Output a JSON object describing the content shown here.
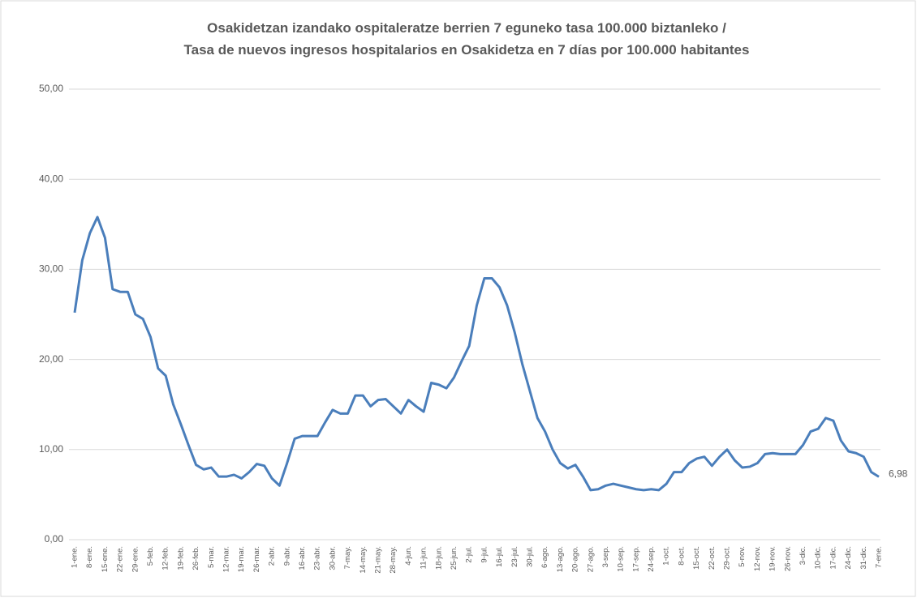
{
  "chart_data": {
    "type": "line",
    "title": "Osakidetzan izandako ospitaleratze berrien 7 eguneko tasa 100.000 biztanleko /",
    "subtitle": "Tasa de nuevos ingresos hospitalarios en Osakidetza en 7 días por 100.000 habitantes",
    "categories": [
      "1-ene.",
      null,
      "8-ene.",
      null,
      "15-ene.",
      null,
      "22-ene.",
      null,
      "29-ene.",
      null,
      "5-feb.",
      null,
      "12-feb.",
      null,
      "19-feb.",
      null,
      "26-feb.",
      null,
      "5-mar.",
      null,
      "12-mar.",
      null,
      "19-mar.",
      null,
      "26-mar.",
      null,
      "2-abr.",
      null,
      "9-abr.",
      null,
      "16-abr.",
      null,
      "23-abr.",
      null,
      "30-abr.",
      null,
      "7-may.",
      null,
      "14-may.",
      null,
      "21-may.",
      null,
      "28-may.",
      null,
      "4-jun.",
      null,
      "11-jun.",
      null,
      "18-jun.",
      null,
      "25-jun.",
      null,
      "2-jul.",
      null,
      "9-jul.",
      null,
      "16-jul.",
      null,
      "23-jul.",
      null,
      "30-jul.",
      null,
      "6-ago.",
      null,
      "13-ago.",
      null,
      "20-ago.",
      null,
      "27-ago.",
      null,
      "3-sep.",
      null,
      "10-sep.",
      null,
      "17-sep.",
      null,
      "24-sep.",
      null,
      "1-oct.",
      null,
      "8-oct.",
      null,
      "15-oct.",
      null,
      "22-oct.",
      null,
      "29-oct.",
      null,
      "5-nov.",
      null,
      "12-nov.",
      null,
      "19-nov.",
      null,
      "26-nov.",
      null,
      "3-dic.",
      null,
      "10-dic.",
      null,
      "17-dic.",
      null,
      "24-dic.",
      null,
      "31-dic.",
      null,
      "7-ene."
    ],
    "values": [
      25.2,
      31,
      34,
      35.8,
      33.5,
      27.8,
      27.5,
      27.5,
      25,
      24.5,
      22.5,
      19,
      18.2,
      15,
      12.8,
      10.5,
      8.3,
      7.8,
      8,
      7,
      7,
      7.2,
      6.8,
      7.5,
      8.4,
      8.2,
      6.8,
      6,
      8.5,
      11.2,
      11.5,
      11.5,
      11.5,
      13,
      14.4,
      14,
      14,
      16,
      16,
      14.8,
      15.5,
      15.6,
      14.8,
      14,
      15.5,
      14.8,
      14.2,
      17.4,
      17.2,
      16.8,
      18,
      19.8,
      21.5,
      26,
      29,
      29,
      28,
      26,
      23,
      19.5,
      16.5,
      13.5,
      12,
      10,
      8.5,
      7.9,
      8.3,
      7,
      5.5,
      5.6,
      6,
      6.2,
      6,
      5.8,
      5.6,
      5.5,
      5.6,
      5.5,
      6.2,
      7.5,
      7.5,
      8.5,
      9,
      9.2,
      8.2,
      9.2,
      10,
      8.8,
      8,
      8.1,
      8.5,
      9.5,
      9.6,
      9.5,
      9.5,
      9.5,
      10.5,
      12,
      12.3,
      13.5,
      13.2,
      11,
      9.8,
      9.6,
      9.2,
      7.5,
      6.98
    ],
    "value_labels": [
      null,
      null,
      null,
      null,
      null,
      null,
      null,
      null,
      null,
      null,
      null,
      null,
      null,
      null,
      null,
      null,
      null,
      null,
      null,
      null,
      null,
      null,
      null,
      null,
      null,
      null,
      null,
      null,
      null,
      null,
      null,
      null,
      null,
      null,
      null,
      null,
      null,
      null,
      null,
      null,
      null,
      null,
      null,
      null,
      null,
      null,
      null,
      null,
      null,
      null,
      null,
      null,
      null,
      null,
      null,
      null,
      null,
      null,
      null,
      null,
      null,
      null,
      null,
      null,
      null,
      null,
      null,
      null,
      null,
      null,
      null,
      null,
      null,
      null,
      null,
      null,
      null,
      null,
      null,
      null,
      null,
      null,
      null,
      null,
      null,
      null,
      null,
      null,
      null,
      null,
      null,
      null,
      null,
      null,
      null,
      null,
      null,
      null,
      null,
      null,
      null,
      null,
      null,
      null,
      null,
      null,
      "6,98"
    ],
    "color": "#4a7ebb",
    "ylim": [
      0,
      50
    ],
    "yticks": [
      {
        "value": 0,
        "label": "0,00"
      },
      {
        "value": 10,
        "label": "10,00"
      },
      {
        "value": 20,
        "label": "20,00"
      },
      {
        "value": 30,
        "label": "30,00"
      },
      {
        "value": 40,
        "label": "40,00"
      },
      {
        "value": 50,
        "label": "50,00"
      }
    ],
    "grid": true
  }
}
